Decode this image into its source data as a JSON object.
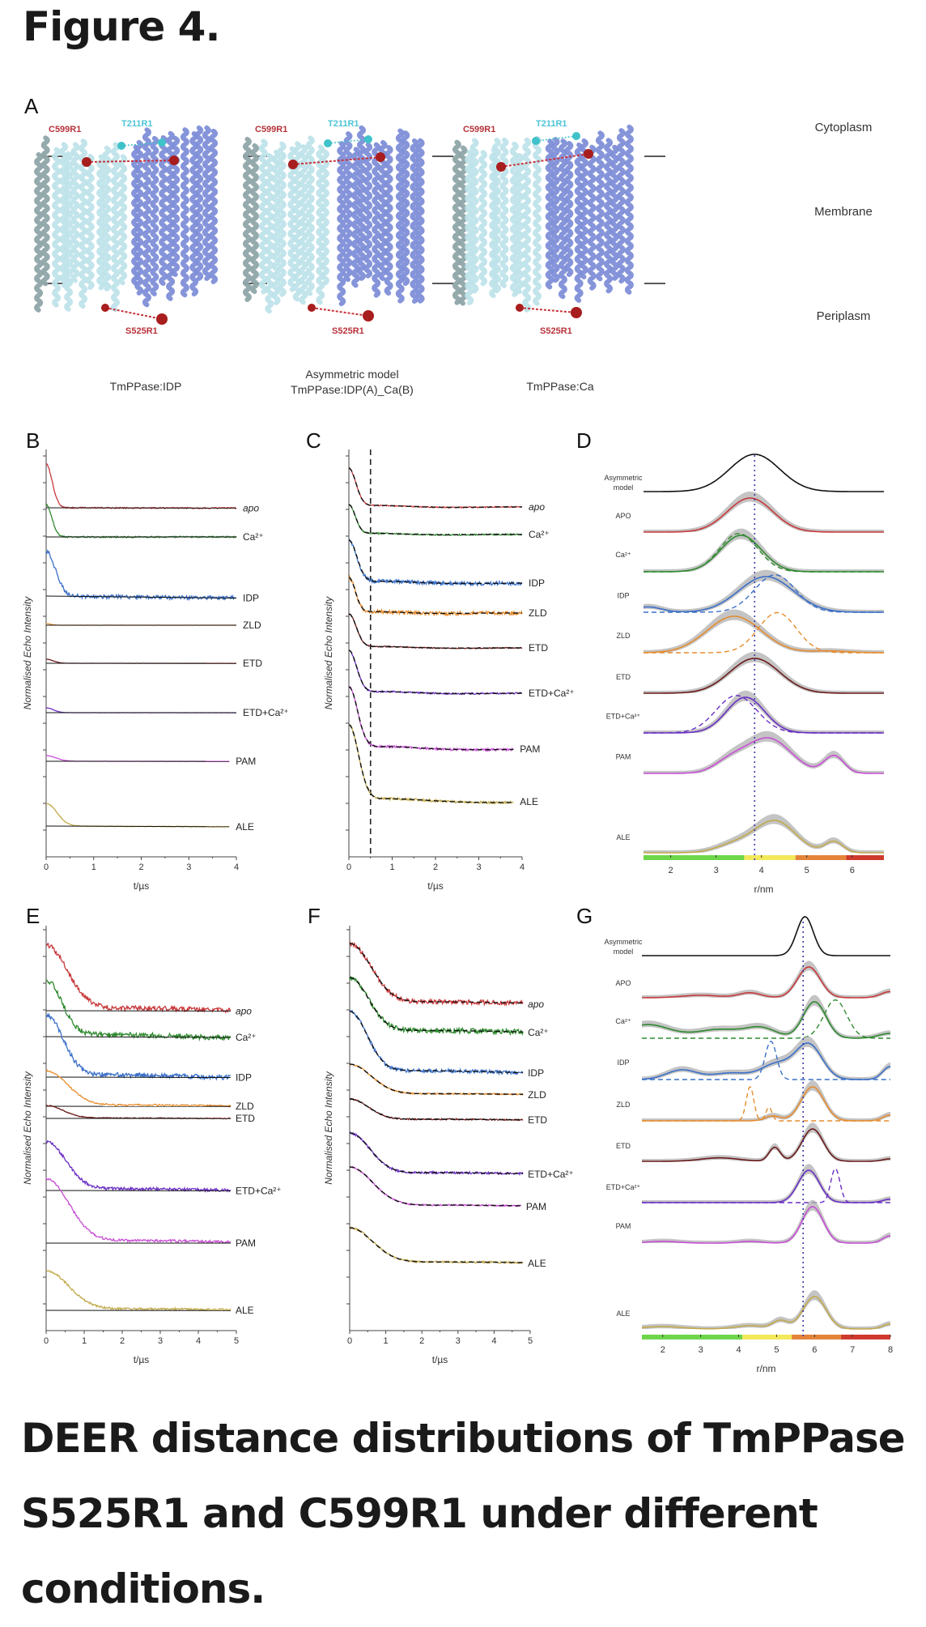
{
  "figure_title": "Figure 4.",
  "caption": "DEER distance distributions of TmPPase S525R1 and C599R1 under different conditions.",
  "colors": {
    "apo": "#c8393b",
    "ca": "#2f8a2f",
    "idp": "#3a6fc8",
    "zld": "#e58c2e",
    "etd": "#6b1a1a",
    "etdca": "#6a2fc4",
    "pam": "#c84fd6",
    "ale": "#c2a94b",
    "model": "#111111",
    "chainA": "#bfe3ea",
    "chainB": "#7f8fd8",
    "spin_red": "#a81d1d",
    "spin_cyan": "#3fc2c9",
    "ref_line": "#3a3aa8",
    "band": "#b0b0b0",
    "scale_green": "#6ed64a",
    "scale_yellow": "#f2e85a",
    "scale_orange": "#e4843a",
    "scale_red": "#cf3a2e"
  },
  "panel_a": {
    "letter": "A",
    "structures": [
      {
        "name": "TmPPase:IDP",
        "subtitle": "",
        "site_top": "C599R1",
        "site_cyan": "T211R1",
        "site_bottom": "S525R1"
      },
      {
        "name": "Asymmetric model",
        "subtitle": "TmPPase:IDP(A)_Ca(B)",
        "site_top": "C599R1",
        "site_cyan": "T211R1",
        "site_bottom": "S525R1"
      },
      {
        "name": "TmPPase:Ca",
        "subtitle": "",
        "site_top": "C599R1",
        "site_cyan": "T211R1",
        "site_bottom": "S525R1"
      }
    ],
    "regions": [
      "Cytoplasm",
      "Membrane",
      "Periplasm"
    ]
  },
  "chart_data": [
    {
      "id": "B",
      "type": "line",
      "title": "",
      "xlabel": "t/µs",
      "ylabel": "Normalised Echo Intensity",
      "xlim": [
        0,
        4
      ],
      "xticks": [
        0,
        1,
        2,
        3,
        4
      ],
      "series": [
        {
          "name": "apo",
          "key": "apo",
          "italic": true,
          "decay": 0.17,
          "depth": 0.55,
          "bg_slope": 0.03,
          "noise": 0.01,
          "t_end": 4.0
        },
        {
          "name": "Ca²⁺",
          "key": "ca",
          "decay": 0.16,
          "depth": 0.45,
          "bg_slope": 0.0,
          "noise": 0.015,
          "t_end": 4.0
        },
        {
          "name": "IDP",
          "key": "idp",
          "decay": 0.26,
          "depth": 0.5,
          "bg_slope": 0.18,
          "noise": 0.03,
          "t_end": 4.0
        },
        {
          "name": "ZLD",
          "key": "zld",
          "decay": 0.13,
          "depth": 0.45,
          "bg_slope": 0.05,
          "noise": 0.035,
          "t_end": 4.0
        },
        {
          "name": "ETD",
          "key": "etd",
          "decay": 0.2,
          "depth": 0.55,
          "bg_slope": 0.06,
          "noise": 0.01,
          "t_end": 4.0
        },
        {
          "name": "ETD+Ca²⁺",
          "key": "etdca",
          "decay": 0.2,
          "depth": 0.6,
          "bg_slope": 0.04,
          "noise": 0.012,
          "t_end": 4.0
        },
        {
          "name": "PAM",
          "key": "pam",
          "decay": 0.28,
          "depth": 0.4,
          "bg_slope": 0.1,
          "noise": 0.012,
          "t_end": 3.85
        },
        {
          "name": "ALE",
          "key": "ale",
          "decay": 0.3,
          "depth": 0.8,
          "bg_slope": 0.12,
          "noise": 0.01,
          "t_end": 3.85
        }
      ]
    },
    {
      "id": "C",
      "type": "line",
      "title": "",
      "xlabel": "t/µs",
      "ylabel": "Normalised Echo Intensity",
      "xlim": [
        0,
        4
      ],
      "xticks": [
        0,
        1,
        2,
        3,
        4
      ],
      "vline_dashed": 0.5,
      "series": [
        {
          "name": "apo",
          "key": "apo",
          "italic": true,
          "decay": 0.22,
          "depth": 0.55,
          "noise": 0.01,
          "t_end": 4.0
        },
        {
          "name": "Ca²⁺",
          "key": "ca",
          "decay": 0.2,
          "depth": 0.45,
          "noise": 0.015,
          "t_end": 4.0
        },
        {
          "name": "IDP",
          "key": "idp",
          "decay": 0.25,
          "depth": 0.6,
          "noise": 0.03,
          "t_end": 4.0
        },
        {
          "name": "ZLD",
          "key": "zld",
          "decay": 0.2,
          "depth": 0.45,
          "noise": 0.035,
          "t_end": 4.0
        },
        {
          "name": "ETD",
          "key": "etd",
          "decay": 0.23,
          "depth": 0.55,
          "noise": 0.01,
          "t_end": 4.0
        },
        {
          "name": "ETD+Ca²⁺",
          "key": "etdca",
          "decay": 0.24,
          "depth": 0.6,
          "noise": 0.012,
          "t_end": 4.0
        },
        {
          "name": "PAM",
          "key": "pam",
          "decay": 0.27,
          "depth": 0.6,
          "noise": 0.012,
          "t_end": 3.8
        },
        {
          "name": "ALE",
          "key": "ale",
          "decay": 0.3,
          "depth": 0.78,
          "noise": 0.01,
          "t_end": 3.8
        }
      ]
    },
    {
      "id": "D",
      "type": "line",
      "title": "",
      "xlabel": "r/nm",
      "xlim": [
        1.4,
        6.7
      ],
      "xticks": [
        2,
        3,
        4,
        5,
        6
      ],
      "vline_dotted": 3.85,
      "scale_bar": [
        [
          1.4,
          3.62,
          "green"
        ],
        [
          3.62,
          4.75,
          "yellow"
        ],
        [
          4.75,
          5.87,
          "orange"
        ],
        [
          5.87,
          6.7,
          "red"
        ]
      ],
      "series": [
        {
          "name": "Asymmetric model",
          "key": "model",
          "peaks": [
            [
              3.85,
              0.55,
              1.0
            ]
          ],
          "band": false
        },
        {
          "name": "APO",
          "key": "apo",
          "peaks": [
            [
              3.75,
              0.5,
              1.0
            ]
          ],
          "band": true
        },
        {
          "name": "Ca²⁺",
          "key": "ca",
          "peaks": [
            [
              3.55,
              0.45,
              1.0
            ]
          ],
          "band": true,
          "dashed": [
            [
              3.5,
              0.42,
              1.05
            ]
          ]
        },
        {
          "name": "IDP",
          "key": "idp",
          "peaks": [
            [
              4.1,
              0.6,
              1.0
            ],
            [
              1.5,
              0.3,
              0.15
            ]
          ],
          "band": true,
          "dashed": [
            [
              4.3,
              0.45,
              1.05
            ]
          ]
        },
        {
          "name": "ZLD",
          "key": "zld",
          "peaks": [
            [
              3.4,
              0.6,
              1.0
            ],
            [
              5.5,
              0.4,
              0.05
            ]
          ],
          "band": true,
          "dashed": [
            [
              4.35,
              0.42,
              1.1
            ]
          ]
        },
        {
          "name": "ETD",
          "key": "etd",
          "peaks": [
            [
              3.85,
              0.55,
              1.0
            ]
          ],
          "band": true
        },
        {
          "name": "ETD+Ca²⁺",
          "key": "etdca",
          "peaks": [
            [
              3.65,
              0.42,
              1.0
            ]
          ],
          "band": true,
          "dashed": [
            [
              3.45,
              0.45,
              1.05
            ]
          ]
        },
        {
          "name": "PAM",
          "key": "pam",
          "peaks": [
            [
              4.15,
              0.5,
              1.0
            ],
            [
              3.3,
              0.35,
              0.3
            ],
            [
              5.6,
              0.22,
              0.5
            ]
          ],
          "band": true
        },
        {
          "name": "ALE",
          "key": "ale",
          "peaks": [
            [
              4.3,
              0.45,
              1.0
            ],
            [
              3.4,
              0.4,
              0.25
            ],
            [
              5.6,
              0.2,
              0.35
            ]
          ],
          "band": true
        }
      ]
    },
    {
      "id": "E",
      "type": "line",
      "title": "",
      "xlabel": "t/µs",
      "ylabel": "Normalised Echo Intensity",
      "xlim": [
        0,
        5
      ],
      "xticks": [
        0,
        1,
        2,
        3,
        4,
        5
      ],
      "series": [
        {
          "name": "apo",
          "key": "apo",
          "italic": true,
          "decay": 0.75,
          "depth": 1.0,
          "bg_slope": 0.02,
          "noise": 0.025,
          "t_end": 4.85
        },
        {
          "name": "Ca²⁺",
          "key": "ca",
          "decay": 0.55,
          "depth": 1.0,
          "bg_slope": 0.06,
          "noise": 0.03,
          "t_end": 4.85
        },
        {
          "name": "IDP",
          "key": "idp",
          "decay": 0.6,
          "depth": 1.0,
          "bg_slope": 0.03,
          "noise": 0.025,
          "t_end": 4.85
        },
        {
          "name": "ZLD",
          "key": "zld",
          "decay": 0.75,
          "depth": 1.0,
          "bg_slope": 0.02,
          "noise": 0.015,
          "t_end": 4.85
        },
        {
          "name": "ETD",
          "key": "etd",
          "decay": 0.6,
          "depth": 1.0,
          "bg_slope": 0.04,
          "noise": 0.02,
          "t_end": 4.85
        },
        {
          "name": "ETD+Ca²⁺",
          "key": "etdca",
          "decay": 0.7,
          "depth": 1.0,
          "bg_slope": 0.03,
          "noise": 0.02,
          "t_end": 4.85
        },
        {
          "name": "PAM",
          "key": "pam",
          "decay": 0.8,
          "depth": 1.0,
          "bg_slope": 0.0,
          "noise": 0.012,
          "t_end": 4.85
        },
        {
          "name": "ALE",
          "key": "ale",
          "decay": 0.8,
          "depth": 1.0,
          "bg_slope": 0.02,
          "noise": 0.018,
          "t_end": 4.85
        }
      ]
    },
    {
      "id": "F",
      "type": "line",
      "title": "",
      "xlabel": "t/µs",
      "ylabel": "Normalised Echo Intensity",
      "xlim": [
        0,
        5
      ],
      "xticks": [
        0,
        1,
        2,
        3,
        4,
        5
      ],
      "series": [
        {
          "name": "apo",
          "key": "apo",
          "italic": true,
          "decay": 0.8,
          "depth": 1.0,
          "noise": 0.025,
          "t_end": 4.8
        },
        {
          "name": "Ca²⁺",
          "key": "ca",
          "decay": 0.7,
          "depth": 1.0,
          "noise": 0.03,
          "t_end": 4.8
        },
        {
          "name": "IDP",
          "key": "idp",
          "decay": 0.65,
          "depth": 1.0,
          "noise": 0.02,
          "t_end": 4.8
        },
        {
          "name": "ZLD",
          "key": "zld",
          "decay": 0.8,
          "depth": 1.0,
          "noise": 0.015,
          "t_end": 4.8
        },
        {
          "name": "ETD",
          "key": "etd",
          "decay": 0.7,
          "depth": 1.0,
          "noise": 0.02,
          "t_end": 4.8
        },
        {
          "name": "ETD+Ca²⁺",
          "key": "etdca",
          "decay": 0.75,
          "depth": 1.0,
          "noise": 0.018,
          "t_end": 4.8
        },
        {
          "name": "PAM",
          "key": "pam",
          "decay": 0.85,
          "depth": 1.0,
          "noise": 0.012,
          "t_end": 4.75
        },
        {
          "name": "ALE",
          "key": "ale",
          "decay": 0.85,
          "depth": 1.0,
          "noise": 0.018,
          "t_end": 4.8
        }
      ]
    },
    {
      "id": "G",
      "type": "line",
      "title": "",
      "xlabel": "r/nm",
      "xlim": [
        1.45,
        8.0
      ],
      "xticks": [
        2,
        3,
        4,
        5,
        6,
        7,
        8
      ],
      "vline_dotted": 5.7,
      "scale_bar": [
        [
          1.45,
          4.1,
          "green"
        ],
        [
          4.1,
          5.4,
          "yellow"
        ],
        [
          5.4,
          6.7,
          "orange"
        ],
        [
          6.7,
          8.0,
          "red"
        ]
      ],
      "series": [
        {
          "name": "Asymmetric model",
          "key": "model",
          "peaks": [
            [
              5.75,
              0.22,
              1.0
            ]
          ],
          "band": false
        },
        {
          "name": "APO",
          "key": "apo",
          "peaks": [
            [
              5.85,
              0.3,
              0.75
            ],
            [
              4.3,
              0.3,
              0.12
            ],
            [
              3.0,
              0.5,
              0.06
            ],
            [
              8.0,
              0.25,
              0.15
            ]
          ],
          "band": true
        },
        {
          "name": "Ca²⁺",
          "key": "ca",
          "peaks": [
            [
              6.0,
              0.3,
              0.75
            ],
            [
              1.6,
              0.6,
              0.28
            ],
            [
              3.5,
              0.6,
              0.18
            ],
            [
              4.6,
              0.4,
              0.2
            ],
            [
              8.0,
              0.3,
              0.1
            ]
          ],
          "band": true,
          "dashed": [
            [
              6.55,
              0.3,
              1.05
            ]
          ]
        },
        {
          "name": "IDP",
          "key": "idp",
          "peaks": [
            [
              5.85,
              0.35,
              0.8
            ],
            [
              5.0,
              0.4,
              0.35
            ],
            [
              2.5,
              0.4,
              0.22
            ],
            [
              3.8,
              0.5,
              0.15
            ],
            [
              8.0,
              0.2,
              0.3
            ]
          ],
          "band": true,
          "dashed": [
            [
              4.85,
              0.15,
              1.05
            ]
          ]
        },
        {
          "name": "ZLD",
          "key": "zld",
          "peaks": [
            [
              5.95,
              0.3,
              0.7
            ],
            [
              4.9,
              0.2,
              0.1
            ],
            [
              8.0,
              0.2,
              0.12
            ]
          ],
          "band": true,
          "dashed": [
            [
              4.3,
              0.1,
              1.0
            ],
            [
              4.8,
              0.08,
              0.4
            ]
          ]
        },
        {
          "name": "ETD",
          "key": "etd",
          "peaks": [
            [
              5.95,
              0.28,
              0.65
            ],
            [
              4.95,
              0.15,
              0.28
            ],
            [
              3.5,
              0.5,
              0.07
            ],
            [
              8.0,
              0.2,
              0.05
            ]
          ],
          "band": true
        },
        {
          "name": "ETD+Ca²⁺",
          "key": "etdca",
          "peaks": [
            [
              5.85,
              0.28,
              0.75
            ],
            [
              8.0,
              0.2,
              0.08
            ]
          ],
          "band": true,
          "dashed": [
            [
              6.55,
              0.12,
              1.05
            ]
          ]
        },
        {
          "name": "PAM",
          "key": "pam",
          "peaks": [
            [
              5.95,
              0.28,
              1.0
            ],
            [
              2.0,
              0.4,
              0.05
            ],
            [
              4.3,
              0.3,
              0.05
            ],
            [
              8.0,
              0.2,
              0.2
            ]
          ],
          "band": true
        },
        {
          "name": "ALE",
          "key": "ale",
          "peaks": [
            [
              6.0,
              0.3,
              0.8
            ],
            [
              5.1,
              0.2,
              0.2
            ],
            [
              4.3,
              0.4,
              0.08
            ],
            [
              2.0,
              0.5,
              0.06
            ],
            [
              8.0,
              0.2,
              0.12
            ]
          ],
          "band": true
        }
      ]
    }
  ]
}
